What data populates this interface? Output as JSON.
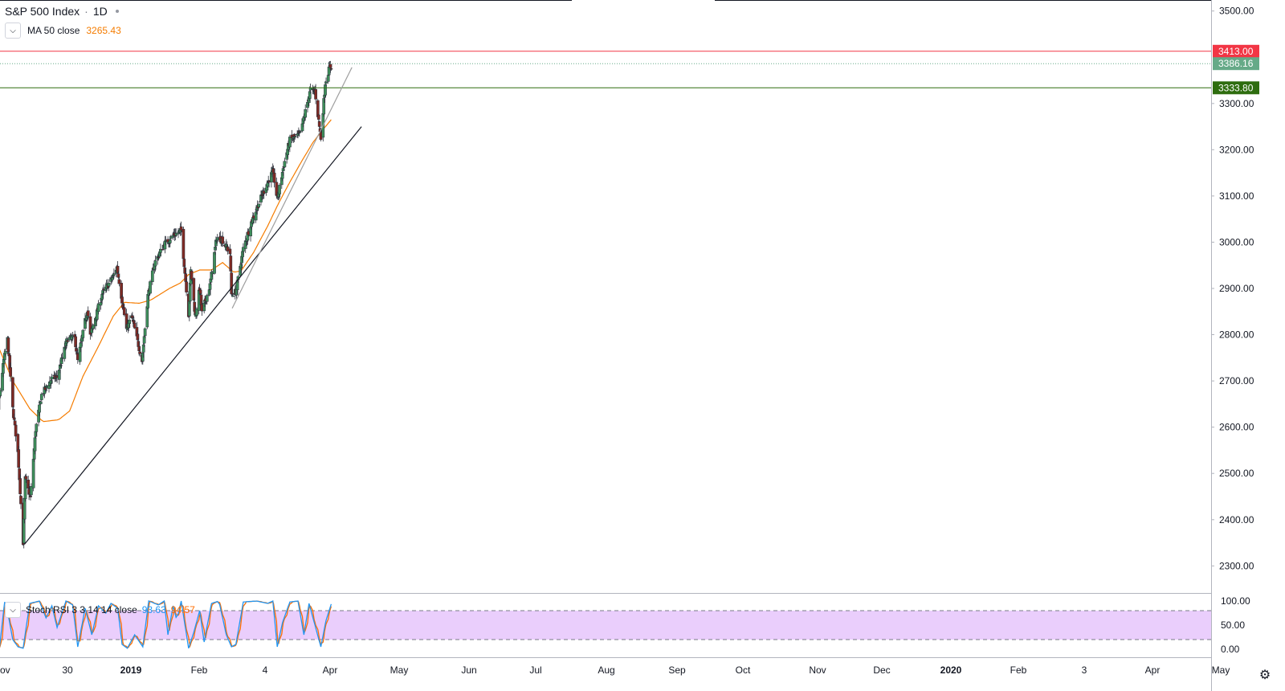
{
  "header": {
    "symbol": "S&P 500 Index",
    "separator": "·",
    "interval": "1D"
  },
  "ma_indicator": {
    "label": "MA 50 close",
    "value": "3265.43",
    "color": "#f57c00"
  },
  "rsi_indicator": {
    "label": "Stoch RSI 3 3 14 14 close",
    "k_value": "93.63",
    "d_value": "94.57",
    "k_color": "#2196f3",
    "d_color": "#ff6d00"
  },
  "price_tags": [
    {
      "label": "3413.00",
      "price": 3413.0,
      "color": "#f23645"
    },
    {
      "label": "3386.16",
      "price": 3386.16,
      "color": "#66aa88"
    },
    {
      "label": "3333.80",
      "price": 3333.8,
      "color": "#2e6d0f"
    }
  ],
  "icons": {
    "chevron": "chevron-down-icon",
    "settings": "gear-icon"
  },
  "chart_data": {
    "type": "candlestick",
    "price_axis": {
      "ticks": [
        2300,
        2400,
        2500,
        2600,
        2700,
        2800,
        2900,
        3000,
        3100,
        3200,
        3300,
        3500
      ],
      "tick_labels": [
        "2300.00",
        "2400.00",
        "2500.00",
        "2600.00",
        "2700.00",
        "2800.00",
        "2900.00",
        "3000.00",
        "3100.00",
        "3200.00",
        "3300.00",
        "3500.00"
      ]
    },
    "time_axis": {
      "labels": [
        "ov",
        "30",
        "2019",
        "Feb",
        "4",
        "Apr",
        "May",
        "Jun",
        "Jul",
        "Aug",
        "Sep",
        "Oct",
        "Nov",
        "Dec",
        "2020",
        "Feb",
        "3",
        "Apr",
        "May"
      ],
      "bold": [
        "2019",
        "2020"
      ]
    },
    "horizontal_lines": [
      {
        "price": 3413.0,
        "color": "#f23645",
        "style": "solid"
      },
      {
        "price": 3386.16,
        "color": "#66aa88",
        "style": "dotted"
      },
      {
        "price": 3333.8,
        "color": "#2e6d0f",
        "style": "solid"
      }
    ],
    "trend_lines": [
      {
        "from": {
          "date": "2018-12-26",
          "price": 2347
        },
        "to": {
          "date": "2020-03-26",
          "price": 3250
        },
        "color": "#131722"
      },
      {
        "from": {
          "date": "2019-10-03",
          "price": 2857
        },
        "to": {
          "date": "2020-03-13",
          "price": 3378
        },
        "color": "#9e9e9e"
      }
    ],
    "ma_anchors": [
      [
        "2018-11-15",
        2795
      ],
      [
        "2018-12-10",
        2700
      ],
      [
        "2019-01-02",
        2640
      ],
      [
        "2019-01-20",
        2612
      ],
      [
        "2019-02-10",
        2616
      ],
      [
        "2019-02-25",
        2635
      ],
      [
        "2019-03-15",
        2710
      ],
      [
        "2019-04-05",
        2775
      ],
      [
        "2019-04-25",
        2840
      ],
      [
        "2019-05-10",
        2870
      ],
      [
        "2019-05-30",
        2868
      ],
      [
        "2019-06-15",
        2875
      ],
      [
        "2019-07-10",
        2900
      ],
      [
        "2019-07-25",
        2912
      ],
      [
        "2019-08-05",
        2930
      ],
      [
        "2019-08-20",
        2940
      ],
      [
        "2019-09-05",
        2940
      ],
      [
        "2019-09-20",
        2956
      ],
      [
        "2019-10-05",
        2935
      ],
      [
        "2019-10-15",
        2938
      ],
      [
        "2019-11-01",
        2978
      ],
      [
        "2019-11-20",
        3035
      ],
      [
        "2019-12-05",
        3085
      ],
      [
        "2019-12-20",
        3130
      ],
      [
        "2020-01-05",
        3175
      ],
      [
        "2020-01-20",
        3215
      ],
      [
        "2020-02-01",
        3240
      ],
      [
        "2020-02-14",
        3265
      ]
    ],
    "price_anchors": [
      [
        "2018-11-05",
        2745
      ],
      [
        "2018-11-08",
        2808
      ],
      [
        "2018-11-20",
        2642
      ],
      [
        "2018-11-28",
        2745
      ],
      [
        "2018-12-03",
        2790
      ],
      [
        "2018-12-10",
        2640
      ],
      [
        "2018-12-17",
        2545
      ],
      [
        "2018-12-24",
        2351
      ],
      [
        "2018-12-27",
        2488
      ],
      [
        "2019-01-03",
        2447
      ],
      [
        "2019-01-10",
        2595
      ],
      [
        "2019-01-18",
        2670
      ],
      [
        "2019-02-01",
        2705
      ],
      [
        "2019-02-08",
        2708
      ],
      [
        "2019-02-22",
        2792
      ],
      [
        "2019-03-04",
        2792
      ],
      [
        "2019-03-08",
        2743
      ],
      [
        "2019-03-21",
        2855
      ],
      [
        "2019-03-25",
        2798
      ],
      [
        "2019-04-10",
        2888
      ],
      [
        "2019-04-25",
        2926
      ],
      [
        "2019-04-30",
        2946
      ],
      [
        "2019-05-13",
        2812
      ],
      [
        "2019-05-20",
        2840
      ],
      [
        "2019-06-03",
        2744
      ],
      [
        "2019-06-11",
        2885
      ],
      [
        "2019-06-20",
        2955
      ],
      [
        "2019-07-03",
        2996
      ],
      [
        "2019-07-15",
        3014
      ],
      [
        "2019-07-26",
        3025
      ],
      [
        "2019-08-05",
        2844
      ],
      [
        "2019-08-08",
        2938
      ],
      [
        "2019-08-14",
        2840
      ],
      [
        "2019-08-20",
        2900
      ],
      [
        "2019-08-23",
        2847
      ],
      [
        "2019-09-03",
        2907
      ],
      [
        "2019-09-12",
        3010
      ],
      [
        "2019-09-19",
        3006
      ],
      [
        "2019-09-30",
        2976
      ],
      [
        "2019-10-02",
        2888
      ],
      [
        "2019-10-08",
        2893
      ],
      [
        "2019-10-18",
        2986
      ],
      [
        "2019-10-28",
        3039
      ],
      [
        "2019-11-06",
        3077
      ],
      [
        "2019-11-18",
        3122
      ],
      [
        "2019-11-27",
        3153
      ],
      [
        "2019-12-03",
        3093
      ],
      [
        "2019-12-12",
        3168
      ],
      [
        "2019-12-20",
        3221
      ],
      [
        "2019-12-31",
        3230
      ],
      [
        "2020-01-03",
        3235
      ],
      [
        "2020-01-17",
        3330
      ],
      [
        "2020-01-23",
        3326
      ],
      [
        "2020-01-31",
        3225
      ],
      [
        "2020-02-06",
        3345
      ],
      [
        "2020-02-12",
        3379
      ],
      [
        "2020-02-14",
        3380
      ]
    ],
    "stoch_rsi": {
      "levels": [
        100,
        80,
        50,
        20,
        0
      ],
      "tick_labels": [
        "100.00",
        "50.00",
        "0.00"
      ],
      "band": [
        20,
        80
      ],
      "band_color": "#e6c6fb",
      "k_anchors": [
        [
          "2018-11-05",
          70
        ],
        [
          "2018-11-12",
          8
        ],
        [
          "2018-11-22",
          2
        ],
        [
          "2018-11-29",
          98
        ],
        [
          "2018-12-04",
          70
        ],
        [
          "2018-12-10",
          20
        ],
        [
          "2018-12-17",
          5
        ],
        [
          "2018-12-24",
          2
        ],
        [
          "2019-01-02",
          95
        ],
        [
          "2019-01-15",
          100
        ],
        [
          "2019-01-24",
          65
        ],
        [
          "2019-02-01",
          90
        ],
        [
          "2019-02-08",
          45
        ],
        [
          "2019-02-20",
          100
        ],
        [
          "2019-03-01",
          92
        ],
        [
          "2019-03-08",
          5
        ],
        [
          "2019-03-18",
          85
        ],
        [
          "2019-03-27",
          30
        ],
        [
          "2019-04-05",
          90
        ],
        [
          "2019-04-15",
          75
        ],
        [
          "2019-04-22",
          95
        ],
        [
          "2019-05-01",
          85
        ],
        [
          "2019-05-07",
          10
        ],
        [
          "2019-05-14",
          2
        ],
        [
          "2019-05-24",
          30
        ],
        [
          "2019-06-04",
          5
        ],
        [
          "2019-06-12",
          100
        ],
        [
          "2019-06-25",
          92
        ],
        [
          "2019-07-03",
          100
        ],
        [
          "2019-07-08",
          30
        ],
        [
          "2019-07-15",
          90
        ],
        [
          "2019-07-20",
          60
        ],
        [
          "2019-07-26",
          100
        ],
        [
          "2019-08-05",
          2
        ],
        [
          "2019-08-12",
          35
        ],
        [
          "2019-08-20",
          80
        ],
        [
          "2019-08-26",
          15
        ],
        [
          "2019-09-05",
          95
        ],
        [
          "2019-09-15",
          100
        ],
        [
          "2019-09-25",
          30
        ],
        [
          "2019-10-02",
          5
        ],
        [
          "2019-10-08",
          10
        ],
        [
          "2019-10-18",
          98
        ],
        [
          "2019-11-05",
          100
        ],
        [
          "2019-11-20",
          95
        ],
        [
          "2019-11-27",
          100
        ],
        [
          "2019-12-03",
          5
        ],
        [
          "2019-12-10",
          55
        ],
        [
          "2019-12-20",
          98
        ],
        [
          "2019-12-31",
          100
        ],
        [
          "2020-01-08",
          30
        ],
        [
          "2020-01-15",
          95
        ],
        [
          "2020-01-23",
          50
        ],
        [
          "2020-01-31",
          5
        ],
        [
          "2020-02-07",
          60
        ],
        [
          "2020-02-14",
          93.63
        ]
      ]
    }
  }
}
